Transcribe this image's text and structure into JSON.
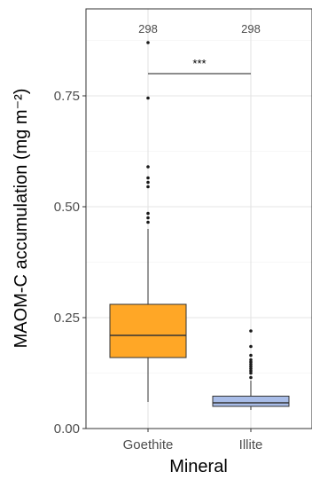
{
  "chart_data": {
    "type": "box",
    "xlabel": "Mineral",
    "ylabel": "MAOM-C accumulation (mg m⁻²)",
    "ylim": [
      0,
      0.8
    ],
    "yticks": [
      {
        "value": 0.0,
        "label": "0.00"
      },
      {
        "value": 0.25,
        "label": "0.25"
      },
      {
        "value": 0.5,
        "label": "0.50"
      },
      {
        "value": 0.75,
        "label": "0.75"
      }
    ],
    "grid": true,
    "categories": [
      {
        "name": "Goethite",
        "n_label": "298",
        "color": "#ffa726",
        "q1": 0.16,
        "median": 0.21,
        "q3": 0.28,
        "whisker_low": 0.06,
        "whisker_high": 0.45,
        "outliers": [
          0.465,
          0.475,
          0.485,
          0.545,
          0.555,
          0.565,
          0.59,
          0.745,
          0.87
        ]
      },
      {
        "name": "Illite",
        "n_label": "298",
        "color": "#a9bde8",
        "q1": 0.05,
        "median": 0.058,
        "q3": 0.073,
        "whisker_low": 0.042,
        "whisker_high": 0.108,
        "outliers": [
          0.115,
          0.125,
          0.13,
          0.135,
          0.14,
          0.145,
          0.15,
          0.155,
          0.165,
          0.185,
          0.22
        ]
      }
    ],
    "significance": {
      "label": "***",
      "y": 0.8
    }
  }
}
